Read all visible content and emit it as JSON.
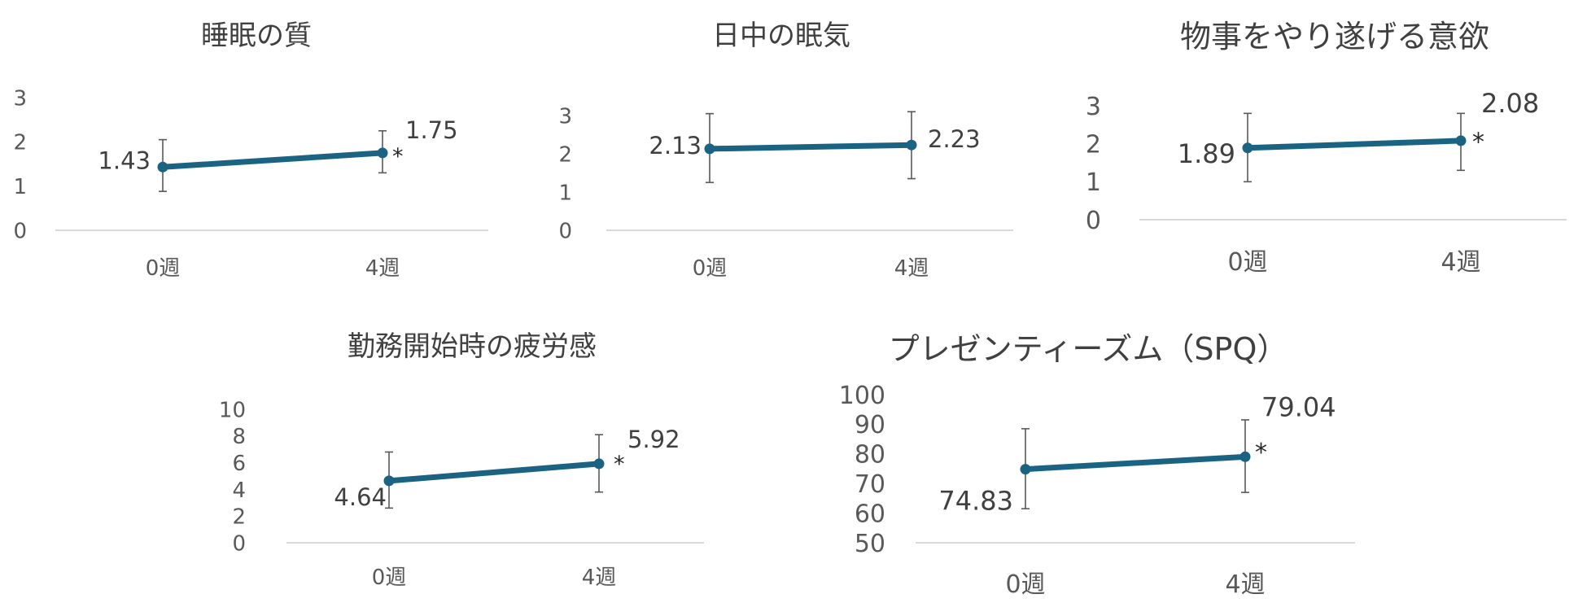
{
  "colors": {
    "series": "#1b6383",
    "errorbar": "#595959",
    "axis": "#d9d9d9",
    "text": "#404040"
  },
  "chart_data": [
    {
      "type": "line",
      "title": "睡眠の質",
      "categories": [
        "0週",
        "4週"
      ],
      "values": [
        1.43,
        1.75
      ],
      "value_labels": [
        "1.43",
        "1.75"
      ],
      "error_bars": [
        [
          0.88,
          2.05
        ],
        [
          1.3,
          2.25
        ]
      ],
      "ylim": [
        0,
        3
      ],
      "yticks": [
        0,
        1,
        2,
        3
      ],
      "significance": [
        "",
        "*"
      ],
      "grid": false,
      "legend": "none"
    },
    {
      "type": "line",
      "title": "日中の眠気",
      "categories": [
        "0週",
        "4週"
      ],
      "values": [
        2.13,
        2.23
      ],
      "value_labels": [
        "2.13",
        "2.23"
      ],
      "error_bars": [
        [
          1.25,
          3.05
        ],
        [
          1.35,
          3.1
        ]
      ],
      "ylim": [
        0,
        3
      ],
      "yticks": [
        0,
        1,
        2,
        3
      ],
      "significance": [
        "",
        ""
      ],
      "grid": false,
      "legend": "none"
    },
    {
      "type": "line",
      "title": "物事をやり遂げる意欲",
      "categories": [
        "0週",
        "4週"
      ],
      "values": [
        1.89,
        2.08
      ],
      "value_labels": [
        "1.89",
        "2.08"
      ],
      "error_bars": [
        [
          1.0,
          2.8
        ],
        [
          1.3,
          2.8
        ]
      ],
      "ylim": [
        0,
        3
      ],
      "yticks": [
        0,
        1,
        2,
        3
      ],
      "significance": [
        "",
        "*"
      ],
      "grid": false,
      "legend": "none"
    },
    {
      "type": "line",
      "title": "勤務開始時の疲労感",
      "categories": [
        "0週",
        "4週"
      ],
      "values": [
        4.64,
        5.92
      ],
      "value_labels": [
        "4.64",
        "5.92"
      ],
      "error_bars": [
        [
          2.6,
          6.8
        ],
        [
          3.8,
          8.1
        ]
      ],
      "ylim": [
        0,
        10
      ],
      "yticks": [
        0,
        2,
        4,
        6,
        8,
        10
      ],
      "significance": [
        "",
        "*"
      ],
      "grid": false,
      "legend": "none"
    },
    {
      "type": "line",
      "title": "プレゼンティーズム（SPQ）",
      "categories": [
        "0週",
        "4週"
      ],
      "values": [
        74.83,
        79.04
      ],
      "value_labels": [
        "74.83",
        "79.04"
      ],
      "error_bars": [
        [
          61.5,
          88.5
        ],
        [
          67.0,
          91.5
        ]
      ],
      "ylim": [
        50,
        100
      ],
      "yticks": [
        50,
        60,
        70,
        80,
        90,
        100
      ],
      "significance": [
        "",
        "*"
      ],
      "grid": false,
      "legend": "none"
    }
  ]
}
